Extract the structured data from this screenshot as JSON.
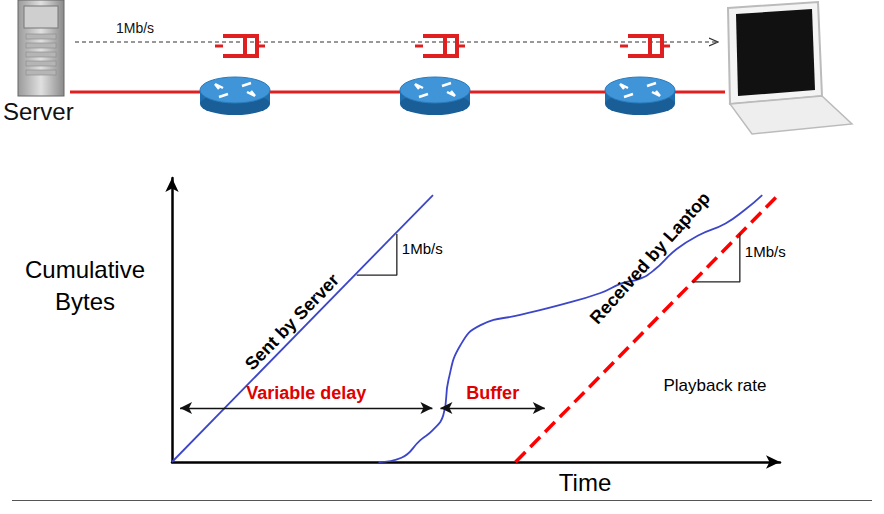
{
  "network": {
    "server_label": "Server",
    "link_rate": "1Mb/s"
  },
  "chart_data": {
    "type": "line",
    "xlabel": "Time",
    "ylabel": "Cumulative Bytes",
    "xlim": [
      0,
      106
    ],
    "ylim": [
      0,
      100
    ],
    "xticks": [],
    "yticks": [],
    "tick_labels": false,
    "grid": false,
    "series": [
      {
        "name": "Sent by Server",
        "color": "#3c46c8",
        "line_style": "solid",
        "x": [
          0,
          45.5
        ],
        "values": [
          0,
          94
        ]
      },
      {
        "name": "Received by Laptop",
        "color": "#3c46c8",
        "line_style": "smooth",
        "x": [
          36,
          40,
          43.3,
          45.5,
          47.3,
          48.2,
          50.3,
          53.8,
          60.7,
          67.7,
          74.7,
          78.5,
          81.5,
          84,
          88,
          92,
          96.5,
          100,
          102.9
        ],
        "values": [
          0,
          1.5,
          7.7,
          11.3,
          16.5,
          28.9,
          41.2,
          48.2,
          51.8,
          55.3,
          59.5,
          63,
          64.5,
          67.5,
          75,
          80,
          84,
          89,
          94
        ]
      },
      {
        "name": "Playback rate",
        "color": "#ff0000",
        "line_style": "dashed",
        "x": [
          59.9,
          105.7
        ],
        "values": [
          0,
          94
        ]
      }
    ],
    "annotations": [
      {
        "text": "Variable delay",
        "color": "#e00000",
        "x": [
          1.4,
          45.4
        ],
        "y": 19
      },
      {
        "text": "Buffer",
        "color": "#e00000",
        "x": [
          46.8,
          65
        ],
        "y": 19
      }
    ],
    "slope_marks": [
      {
        "label": "1Mb/s",
        "x": [
          32.2,
          39.2
        ],
        "y": [
          65.8,
          80.3
        ]
      },
      {
        "label": "1Mb/s",
        "x": [
          90.7,
          99.0
        ],
        "y": [
          63.4,
          80.4
        ]
      }
    ]
  }
}
